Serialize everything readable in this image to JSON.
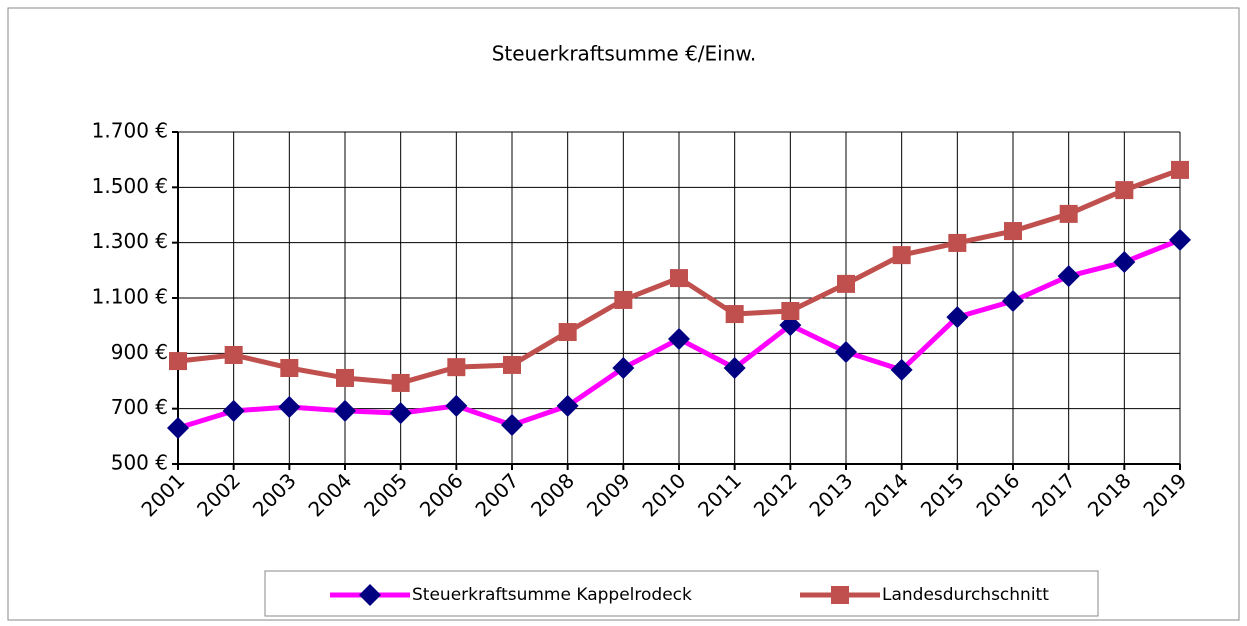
{
  "chart_data": {
    "type": "line",
    "title": "Steuerkraftsumme €/Einw.",
    "categories": [
      "2001",
      "2002",
      "2003",
      "2004",
      "2005",
      "2006",
      "2007",
      "2008",
      "2009",
      "2010",
      "2011",
      "2012",
      "2013",
      "2014",
      "2015",
      "2016",
      "2017",
      "2018",
      "2019"
    ],
    "series": [
      {
        "name": "Steuerkraftsumme Kappelrodeck",
        "color": "#ff00ff",
        "marker_color": "#000080",
        "marker": "diamond",
        "values": [
          630,
          692,
          706,
          692,
          684,
          710,
          641,
          710,
          847,
          952,
          847,
          1002,
          905,
          840,
          1031,
          1089,
          1179,
          1230,
          1310
        ]
      },
      {
        "name": "Landesdurchschnitt",
        "color": "#c0504d",
        "marker_color": "#c0504d",
        "marker": "square",
        "values": [
          872,
          894,
          847,
          811,
          793,
          850,
          858,
          977,
          1093,
          1172,
          1042,
          1053,
          1151,
          1255,
          1299,
          1342,
          1404,
          1490,
          1563
        ]
      }
    ],
    "ylim": [
      500,
      1700
    ],
    "yticks": [
      {
        "value": 500,
        "label": "500 €"
      },
      {
        "value": 700,
        "label": "700 €"
      },
      {
        "value": 900,
        "label": "900 €"
      },
      {
        "value": 1100,
        "label": "1.100 €"
      },
      {
        "value": 1300,
        "label": "1.300 €"
      },
      {
        "value": 1500,
        "label": "1.500 €"
      },
      {
        "value": 1700,
        "label": "1.700 €"
      }
    ],
    "grid": true,
    "legend": "bottom"
  }
}
